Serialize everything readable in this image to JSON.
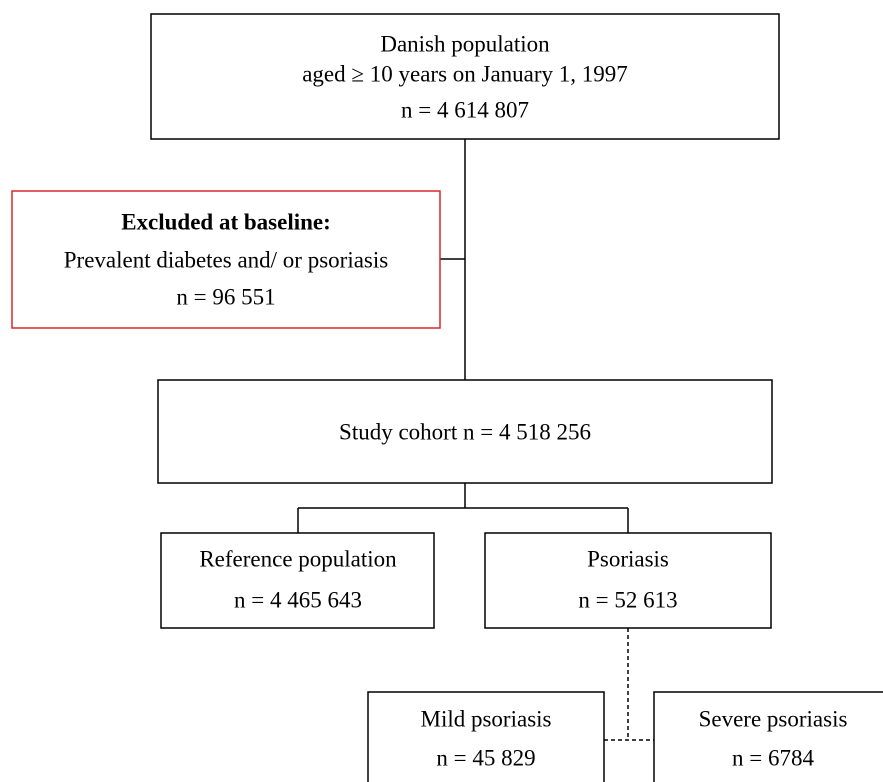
{
  "nodes": [
    {
      "lines": [
        "Danish population",
        "aged ≥ 10 years on January 1, 1997",
        "n = 4 614 807"
      ]
    },
    {
      "title": "Excluded at baseline:",
      "lines": [
        "Prevalent diabetes and/ or psoriasis",
        "n  = 96 551"
      ]
    },
    {
      "lines": [
        "Study cohort n = 4 518 256"
      ]
    },
    {
      "lines": [
        "Reference population",
        "n = 4 465 643"
      ]
    },
    {
      "lines": [
        "Psoriasis",
        "n = 52 613"
      ]
    },
    {
      "lines": [
        "Mild psoriasis",
        "n = 45 829"
      ]
    },
    {
      "lines": [
        "Severe psoriasis",
        "n = 6784"
      ]
    }
  ]
}
